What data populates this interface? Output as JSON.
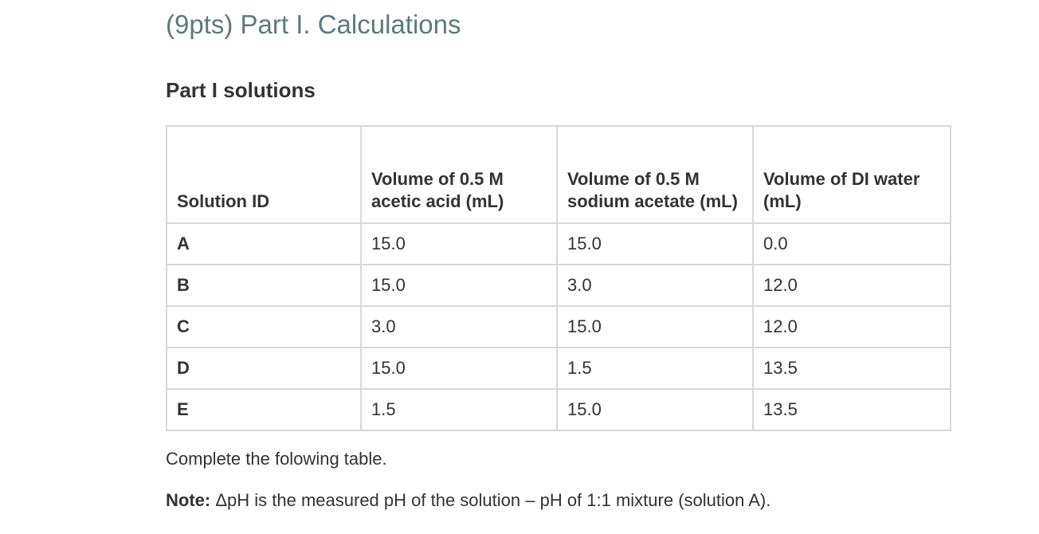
{
  "section_title": "(9pts) Part I. Calculations",
  "subtitle": "Part I solutions",
  "table": {
    "headers": [
      "Solution ID",
      "Volume of 0.5 M acetic acid (mL)",
      "Volume of 0.5 M sodium acetate (mL)",
      "Volume of DI water (mL)"
    ],
    "rows": [
      [
        "A",
        "15.0",
        "15.0",
        "0.0"
      ],
      [
        "B",
        "15.0",
        "3.0",
        "12.0"
      ],
      [
        "C",
        "3.0",
        "15.0",
        "12.0"
      ],
      [
        "D",
        "15.0",
        "1.5",
        "13.5"
      ],
      [
        "E",
        "1.5",
        "15.0",
        "13.5"
      ]
    ]
  },
  "instruction": "Complete the folowing table.",
  "note": {
    "label": "Note:",
    "text": " ΔpH is the measured pH of the solution – pH of 1:1 mixture (solution A)."
  }
}
